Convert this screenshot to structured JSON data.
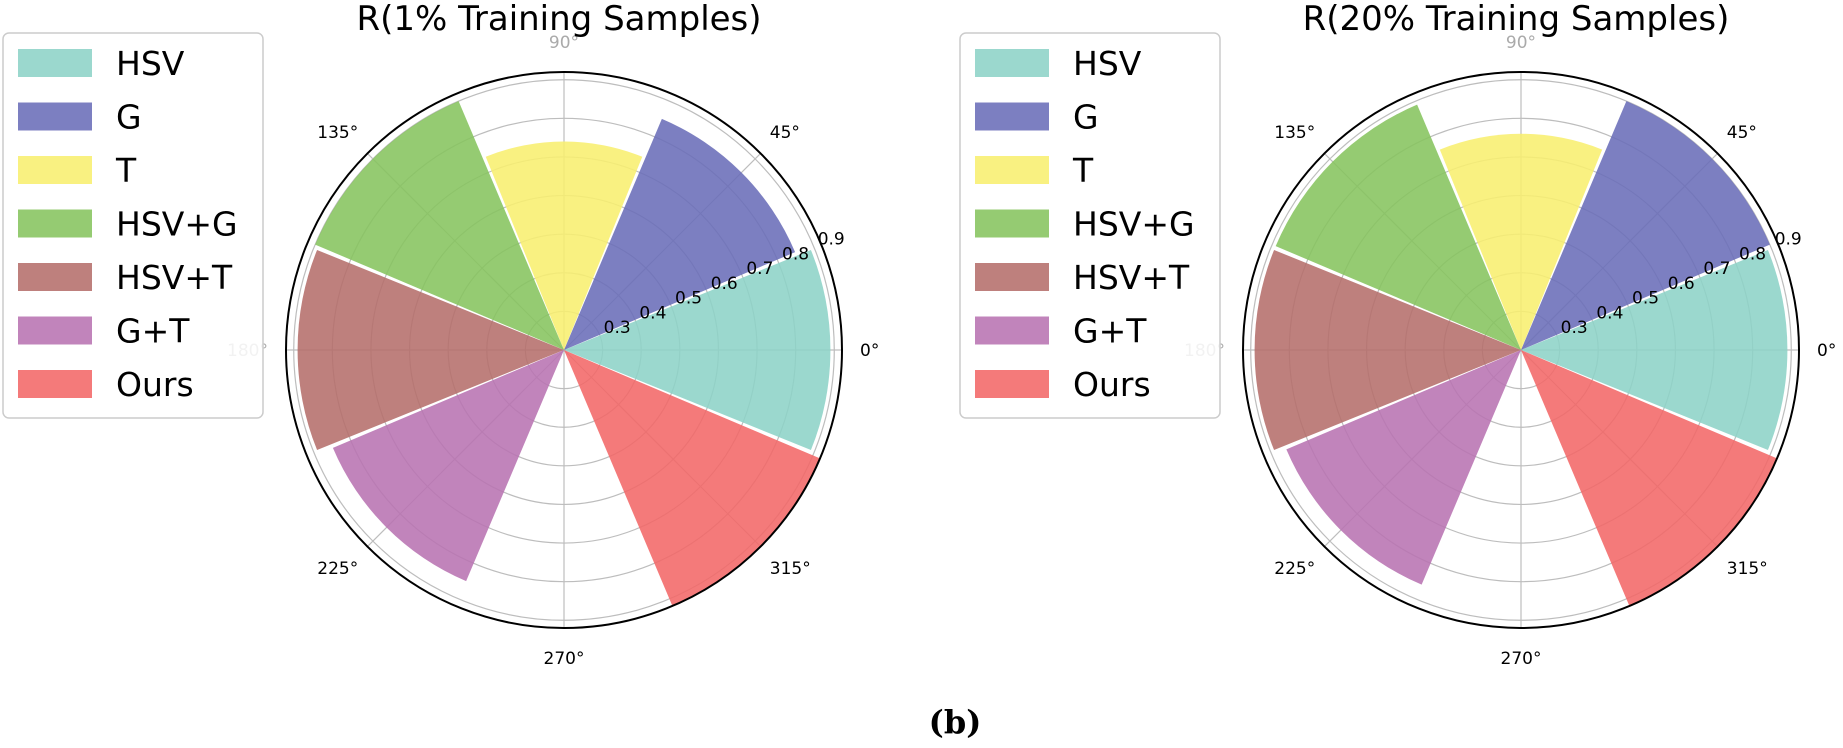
{
  "caption": "(b)",
  "chart_data": [
    {
      "type": "polar-bar",
      "title": "R(1% Training Samples)",
      "theta_ticks": [
        "0°",
        "45°",
        "90°",
        "135°",
        "180°",
        "225°",
        "270°",
        "315°"
      ],
      "r_ticks": [
        "0.3",
        "0.4",
        "0.5",
        "0.6",
        "0.7",
        "0.8",
        "0.9"
      ],
      "rlim": [
        0.2,
        0.92
      ],
      "grid": true,
      "legend_position": "left",
      "series": [
        {
          "name": "HSV",
          "angle_deg": 0,
          "value": 0.89,
          "color": "#8dd3c7"
        },
        {
          "name": "G",
          "angle_deg": 45,
          "value": 0.85,
          "color": "#6a6db8"
        },
        {
          "name": "T",
          "angle_deg": 90,
          "value": 0.74,
          "color": "#f8ef6f"
        },
        {
          "name": "HSV+G",
          "angle_deg": 135,
          "value": 0.9,
          "color": "#86c45f"
        },
        {
          "name": "HSV+T",
          "angle_deg": 180,
          "value": 0.89,
          "color": "#b56e6b"
        },
        {
          "name": "G+T",
          "angle_deg": 225,
          "value": 0.85,
          "color": "#b873b2"
        },
        {
          "name": "Ours",
          "angle_deg": 315,
          "value": 0.92,
          "color": "#f26868"
        }
      ]
    },
    {
      "type": "polar-bar",
      "title": "R(20% Training Samples)",
      "theta_ticks": [
        "0°",
        "45°",
        "90°",
        "135°",
        "180°",
        "225°",
        "270°",
        "315°"
      ],
      "r_ticks": [
        "0.3",
        "0.4",
        "0.5",
        "0.6",
        "0.7",
        "0.8",
        "0.9"
      ],
      "rlim": [
        0.2,
        0.92
      ],
      "grid": true,
      "legend_position": "left",
      "series": [
        {
          "name": "HSV",
          "angle_deg": 0,
          "value": 0.89,
          "color": "#8dd3c7"
        },
        {
          "name": "G",
          "angle_deg": 45,
          "value": 0.9,
          "color": "#6a6db8"
        },
        {
          "name": "T",
          "angle_deg": 90,
          "value": 0.76,
          "color": "#f8ef6f"
        },
        {
          "name": "HSV+G",
          "angle_deg": 135,
          "value": 0.89,
          "color": "#86c45f"
        },
        {
          "name": "HSV+T",
          "angle_deg": 180,
          "value": 0.89,
          "color": "#b56e6b"
        },
        {
          "name": "G+T",
          "angle_deg": 225,
          "value": 0.86,
          "color": "#b873b2"
        },
        {
          "name": "Ours",
          "angle_deg": 315,
          "value": 0.92,
          "color": "#f26868"
        }
      ]
    }
  ]
}
